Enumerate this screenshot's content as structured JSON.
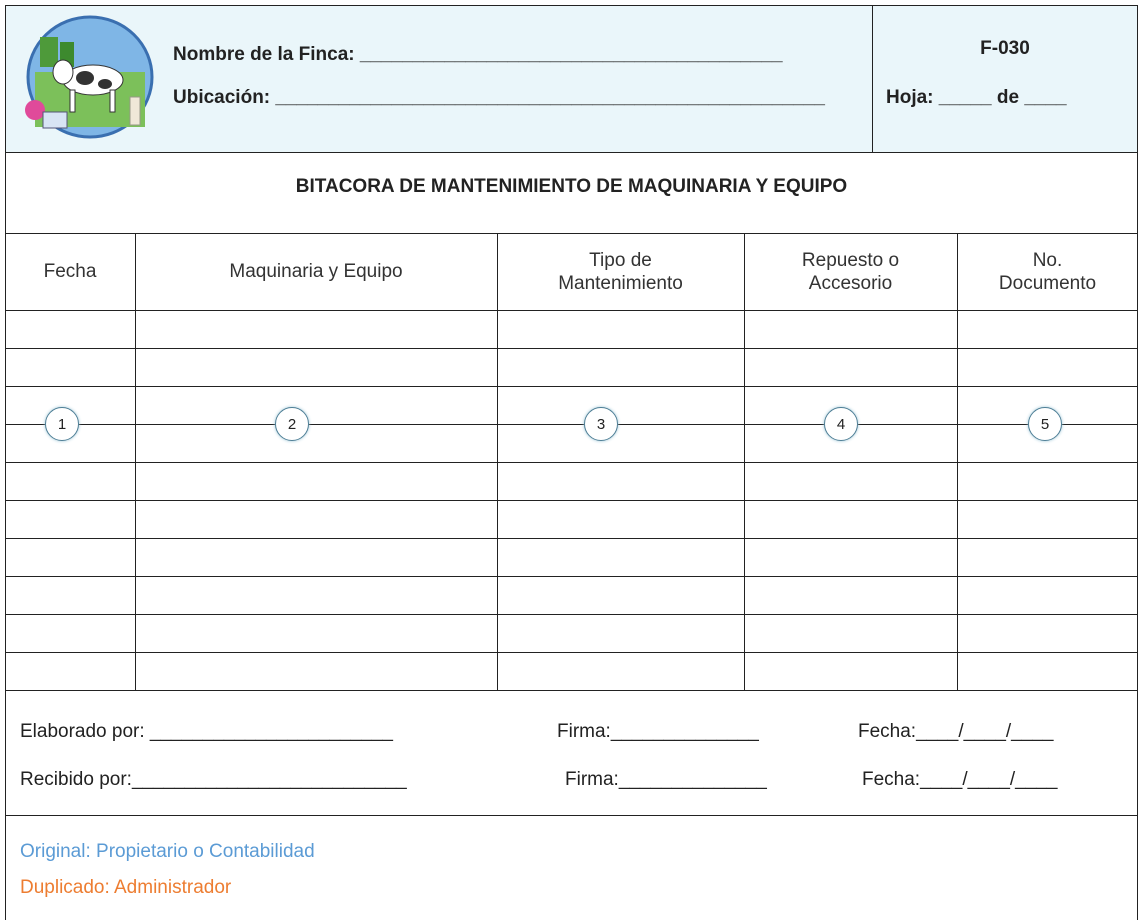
{
  "header": {
    "farm_name": "Nombre de la Finca: ________________________________________",
    "location": "Ubicación: ____________________________________________________",
    "form_code": "F-030",
    "page": "Hoja: _____ de ____"
  },
  "title": "BITACORA DE MANTENIMIENTO DE MAQUINARIA Y EQUIPO",
  "table": {
    "columns": [
      "Fecha",
      "Maquinaria y Equipo",
      "Tipo de Mantenimiento",
      "Repuesto o Accesorio",
      "No. Documento"
    ],
    "markers": [
      "1",
      "2",
      "3",
      "4",
      "5"
    ]
  },
  "footer": {
    "prepared_by": "Elaborado por: _______________________",
    "prepared_signature": "Firma:______________",
    "prepared_date": "Fecha:____/____/____",
    "received_by": "Recibido por:__________________________",
    "received_signature": "Firma:______________",
    "received_date": "Fecha:____/____/____"
  },
  "distribution": {
    "original": "Original: Propietario o Contabilidad",
    "duplicate": "Duplicado: Administrador"
  }
}
